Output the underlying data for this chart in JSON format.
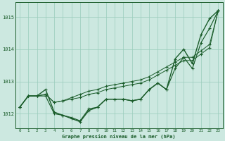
{
  "background_color": "#cce8e0",
  "plot_bg_color": "#cce8e0",
  "grid_color": "#99ccbb",
  "line_color": "#1a5c2a",
  "title": "Graphe pression niveau de la mer (hPa)",
  "ylim": [
    1011.55,
    1015.45
  ],
  "xlim": [
    -0.5,
    23.5
  ],
  "yticks": [
    1012,
    1013,
    1014,
    1015
  ],
  "xticks": [
    0,
    1,
    2,
    3,
    4,
    5,
    6,
    7,
    8,
    9,
    10,
    11,
    12,
    13,
    14,
    15,
    16,
    17,
    18,
    19,
    20,
    21,
    22,
    23
  ],
  "series": {
    "s1": [
      1012.2,
      1012.55,
      1012.55,
      1012.75,
      1012.05,
      1011.95,
      1011.85,
      1011.75,
      1012.1,
      1012.2,
      1012.45,
      1012.45,
      1012.45,
      1012.4,
      1012.45,
      1012.75,
      1012.95,
      1012.75,
      1013.7,
      1014.0,
      1013.55,
      1014.45,
      1014.95,
      1015.2
    ],
    "s2": [
      1012.2,
      1012.55,
      1012.55,
      1012.6,
      1012.35,
      1012.4,
      1012.45,
      1012.5,
      1012.6,
      1012.65,
      1012.75,
      1012.8,
      1012.85,
      1012.9,
      1012.95,
      1013.05,
      1013.2,
      1013.35,
      1013.5,
      1013.65,
      1013.65,
      1013.85,
      1014.05,
      1015.2
    ],
    "s3": [
      1012.2,
      1012.55,
      1012.55,
      1012.6,
      1012.35,
      1012.4,
      1012.5,
      1012.6,
      1012.7,
      1012.75,
      1012.85,
      1012.9,
      1012.95,
      1013.0,
      1013.05,
      1013.15,
      1013.3,
      1013.45,
      1013.6,
      1013.75,
      1013.75,
      1013.95,
      1014.15,
      1015.2
    ],
    "s4": [
      1012.2,
      1012.55,
      1012.55,
      1012.55,
      1012.0,
      1011.95,
      1011.88,
      1011.78,
      1012.15,
      1012.2,
      1012.45,
      1012.45,
      1012.45,
      1012.4,
      1012.45,
      1012.75,
      1012.95,
      1012.75,
      1013.4,
      1013.75,
      1013.4,
      1014.2,
      1014.65,
      1015.2
    ]
  }
}
